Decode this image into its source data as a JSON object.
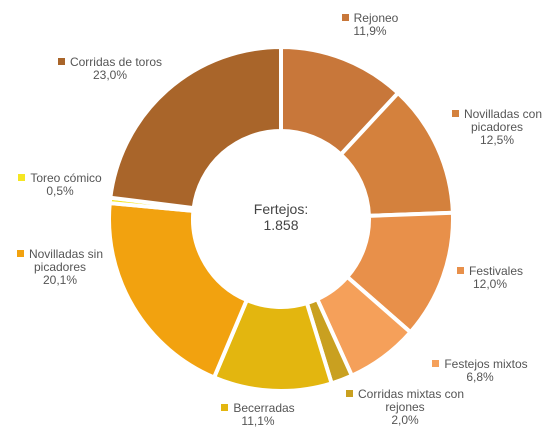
{
  "chart_data": {
    "type": "donut",
    "center_title": "Fertejos:",
    "center_value": "1.858",
    "categories": [
      "Rejoneo",
      "Novilladas con picadores",
      "Festivales",
      "Festejos mixtos",
      "Corridas mixtas con rejones",
      "Becerradas",
      "Novilladas sin picadores",
      "Toreo cómico",
      "Corridas de toros"
    ],
    "values": [
      11.9,
      12.5,
      12.0,
      6.8,
      2.0,
      11.1,
      20.1,
      0.5,
      23.0
    ],
    "value_labels": [
      "11,9%",
      "12,5%",
      "12,0%",
      "6,8%",
      "2,0%",
      "11,1%",
      "20,1%",
      "0,5%",
      "23,0%"
    ],
    "colors": [
      "#c8773a",
      "#d4813d",
      "#e8904a",
      "#f5a05a",
      "#c9a020",
      "#e3b60f",
      "#f2a20f",
      "#f5e622",
      "#a9652a"
    ]
  }
}
